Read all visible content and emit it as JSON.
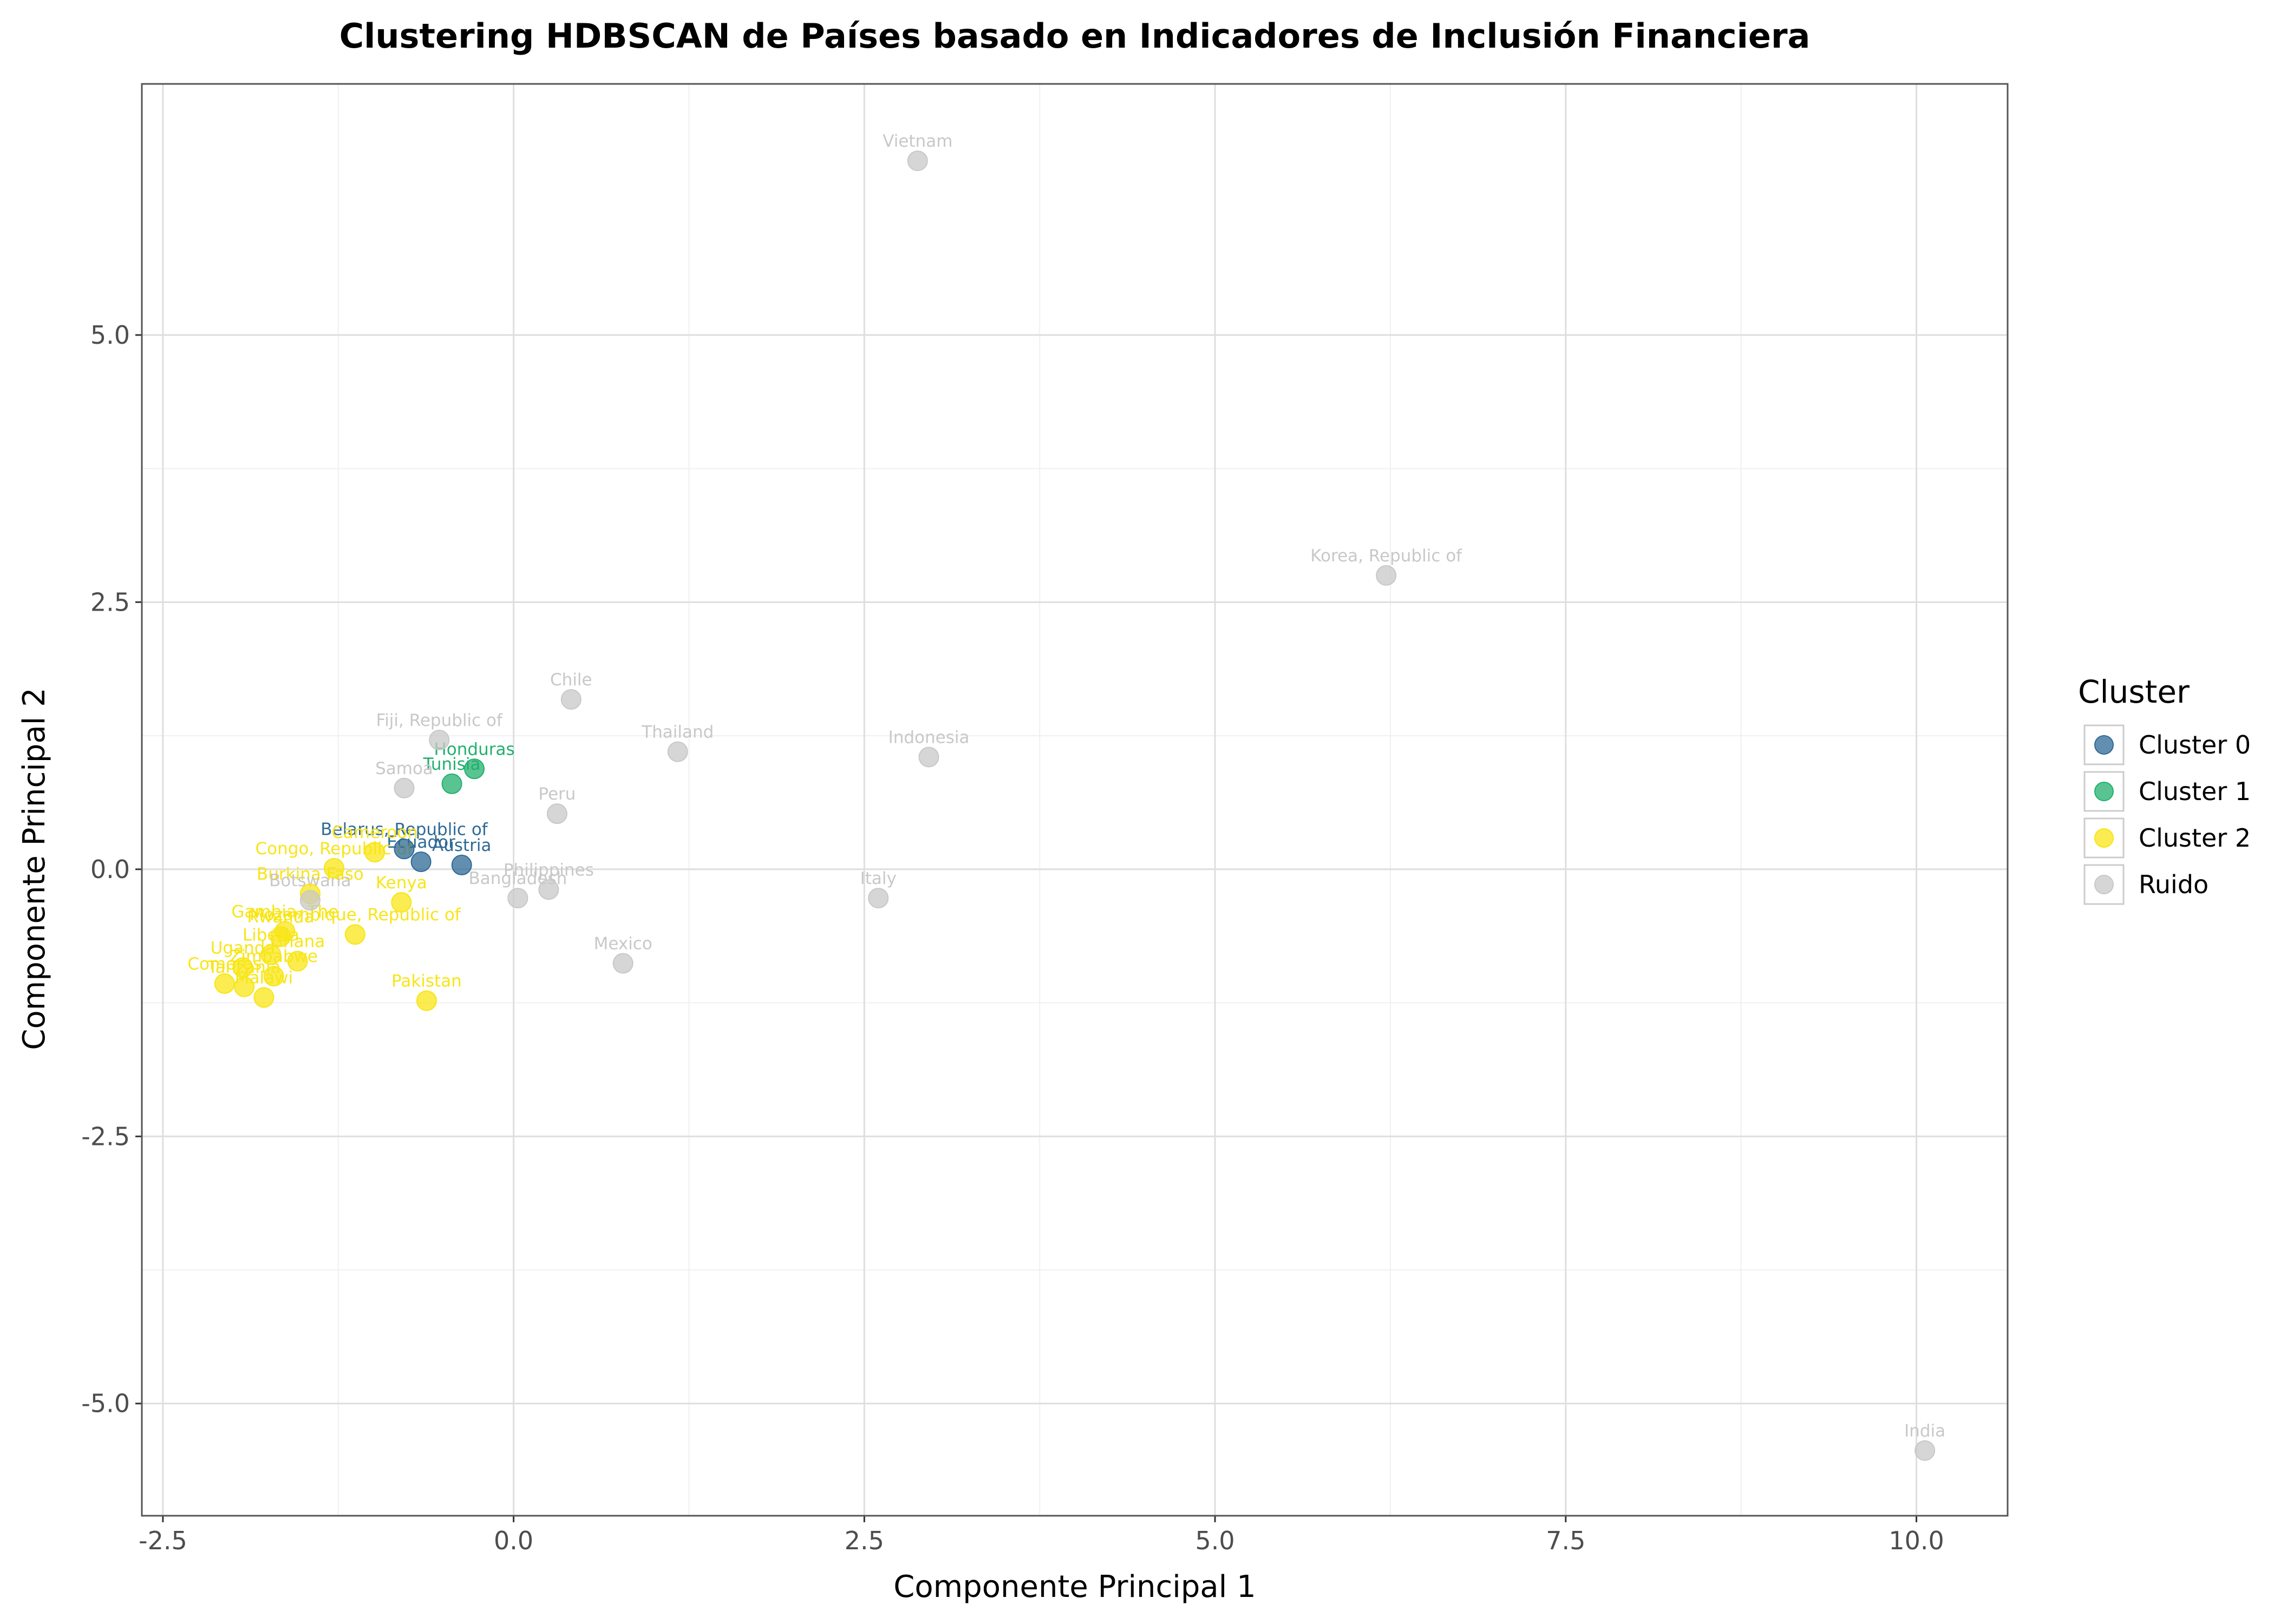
{
  "chart_data": {
    "type": "scatter",
    "title": "Clustering HDBSCAN de Países basado en Indicadores de Inclusión Financiera",
    "xlabel": "Componente Principal 1",
    "ylabel": "Componente Principal 2",
    "xlim": [
      -2.65,
      10.65
    ],
    "ylim": [
      -6.05,
      7.35
    ],
    "xticks": [
      -2.5,
      0.0,
      2.5,
      5.0,
      7.5,
      10.0
    ],
    "xtick_labels": [
      "-2.5",
      "0.0",
      "2.5",
      "5.0",
      "7.5",
      "10.0"
    ],
    "yticks": [
      -5.0,
      -2.5,
      0.0,
      2.5,
      5.0
    ],
    "ytick_labels": [
      "-5.0",
      "-2.5",
      "0.0",
      "2.5",
      "5.0"
    ],
    "grid": true,
    "legend_position": "right",
    "legend_title": "Cluster",
    "series": [
      {
        "name": "Cluster 0",
        "color": "#2e6a96",
        "points": [
          {
            "label": "Belarus, Republic of",
            "x": -0.78,
            "y": 0.19
          },
          {
            "label": "Ecuador",
            "x": -0.66,
            "y": 0.07
          },
          {
            "label": "Austria",
            "x": -0.37,
            "y": 0.04
          }
        ]
      },
      {
        "name": "Cluster 1",
        "color": "#22b06e",
        "points": [
          {
            "label": "Honduras",
            "x": -0.28,
            "y": 0.94
          },
          {
            "label": "Tunisia",
            "x": -0.44,
            "y": 0.8
          }
        ]
      },
      {
        "name": "Cluster 2",
        "color": "#f8e517",
        "points": [
          {
            "label": "Congo, Republic of",
            "x": -1.28,
            "y": 0.01
          },
          {
            "label": "Cameroon",
            "x": -0.99,
            "y": 0.16
          },
          {
            "label": "Burkina Faso",
            "x": -1.45,
            "y": -0.23
          },
          {
            "label": "Kenya",
            "x": -0.8,
            "y": -0.31
          },
          {
            "label": "Mozambique, Republic of",
            "x": -1.13,
            "y": -0.61
          },
          {
            "label": "Gambia, The",
            "x": -1.63,
            "y": -0.58
          },
          {
            "label": "Rwanda",
            "x": -1.66,
            "y": -0.63
          },
          {
            "label": "Ghana",
            "x": -1.54,
            "y": -0.86
          },
          {
            "label": "Liberia",
            "x": -1.73,
            "y": -0.8
          },
          {
            "label": "Uganda",
            "x": -1.93,
            "y": -0.92
          },
          {
            "label": "Zimbabwe",
            "x": -1.71,
            "y": -1.0
          },
          {
            "label": "Comoros",
            "x": -2.06,
            "y": -1.07
          },
          {
            "label": "Tanzania",
            "x": -1.92,
            "y": -1.1
          },
          {
            "label": "Malawi",
            "x": -1.78,
            "y": -1.2
          },
          {
            "label": "Pakistan",
            "x": -0.62,
            "y": -1.23
          }
        ]
      },
      {
        "name": "Ruido",
        "color": "#c8c8c8",
        "points": [
          {
            "label": "Vietnam",
            "x": 2.88,
            "y": 6.63
          },
          {
            "label": "Korea, Republic of",
            "x": 6.22,
            "y": 2.75
          },
          {
            "label": "Chile",
            "x": 0.41,
            "y": 1.59
          },
          {
            "label": "Fiji, Republic of",
            "x": -0.53,
            "y": 1.21
          },
          {
            "label": "Thailand",
            "x": 1.17,
            "y": 1.1
          },
          {
            "label": "Indonesia",
            "x": 2.96,
            "y": 1.05
          },
          {
            "label": "Samoa",
            "x": -0.78,
            "y": 0.76
          },
          {
            "label": "Peru",
            "x": 0.31,
            "y": 0.52
          },
          {
            "label": "Botswana",
            "x": -1.45,
            "y": -0.29
          },
          {
            "label": "Bangladesh",
            "x": 0.03,
            "y": -0.27
          },
          {
            "label": "Philippines",
            "x": 0.25,
            "y": -0.19
          },
          {
            "label": "Italy",
            "x": 2.6,
            "y": -0.27
          },
          {
            "label": "Mexico",
            "x": 0.78,
            "y": -0.88
          },
          {
            "label": "India",
            "x": 10.06,
            "y": -5.44
          }
        ]
      }
    ]
  }
}
